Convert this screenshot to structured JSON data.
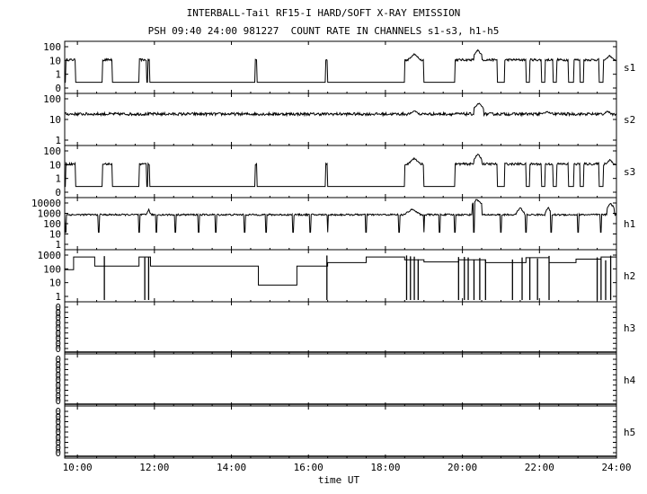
{
  "header": {
    "title": "INTERBALL-Tail RF15-I HARD/SOFT X-RAY EMISSION",
    "subtitle": "PSH 09:40 24:00 981227  COUNT RATE IN CHANNELS s1-s3, h1-h5"
  },
  "chart_data": {
    "type": "line",
    "xlabel": "time UT",
    "x_unit": "hours UT",
    "xlim": [
      9.67,
      24.0
    ],
    "x_ticks": [
      10,
      12,
      14,
      16,
      18,
      20,
      22,
      24
    ],
    "x_tick_labels": [
      "10:00",
      "12:00",
      "14:00",
      "16:00",
      "18:00",
      "20:00",
      "22:00",
      "24:00"
    ],
    "panels": [
      {
        "name": "s1",
        "scale": "log",
        "y_tick_labels": [
          "100",
          "10",
          "1",
          "0"
        ],
        "baseline": 2.2,
        "baseline_noise": 0.08,
        "gaps": [
          [
            9.7,
            9.95
          ],
          [
            10.65,
            10.9
          ],
          [
            11.6,
            11.8
          ],
          [
            11.82,
            11.88
          ],
          [
            14.62,
            14.66
          ],
          [
            16.45,
            16.5
          ],
          [
            18.5,
            19.0
          ],
          [
            19.8,
            20.9
          ],
          [
            21.1,
            21.65
          ],
          [
            21.75,
            22.05
          ],
          [
            22.15,
            22.35
          ],
          [
            22.45,
            22.75
          ],
          [
            22.9,
            23.05
          ],
          [
            23.15,
            23.55
          ],
          [
            23.65,
            24.0
          ]
        ],
        "gap_level": 1.2,
        "peaks": [
          [
            18.6,
            18.9,
            2.6
          ],
          [
            20.3,
            20.5,
            2.9
          ],
          [
            23.7,
            23.95,
            2.5
          ]
        ]
      },
      {
        "name": "s2",
        "scale": "log",
        "y_tick_labels": [
          "100",
          "10",
          "1"
        ],
        "baseline": 2.05,
        "baseline_noise": 0.1,
        "gaps": [],
        "gap_level": 2.05,
        "peaks": [
          [
            18.6,
            18.9,
            2.3
          ],
          [
            20.3,
            20.55,
            2.8
          ],
          [
            21.9,
            22.5,
            2.2
          ],
          [
            23.6,
            23.95,
            2.25
          ]
        ]
      },
      {
        "name": "s3",
        "scale": "log",
        "y_tick_labels": [
          "100",
          "10",
          "1",
          "0"
        ],
        "baseline": 2.2,
        "baseline_noise": 0.08,
        "gaps": [
          [
            9.7,
            9.95
          ],
          [
            10.65,
            10.9
          ],
          [
            11.6,
            11.8
          ],
          [
            11.82,
            11.88
          ],
          [
            14.62,
            14.66
          ],
          [
            16.45,
            16.5
          ],
          [
            18.5,
            19.0
          ],
          [
            19.8,
            20.9
          ],
          [
            21.1,
            21.65
          ],
          [
            21.75,
            22.05
          ],
          [
            22.15,
            22.35
          ],
          [
            22.45,
            22.75
          ],
          [
            22.9,
            23.05
          ],
          [
            23.15,
            23.55
          ],
          [
            23.65,
            24.0
          ]
        ],
        "gap_level": 1.2,
        "peaks": [
          [
            18.6,
            18.9,
            2.6
          ],
          [
            20.3,
            20.5,
            2.9
          ],
          [
            23.7,
            23.95,
            2.5
          ]
        ]
      },
      {
        "name": "h1",
        "scale": "log",
        "y_tick_labels": [
          "10000",
          "1000",
          "100",
          "10",
          "1"
        ],
        "baseline": 2.3,
        "baseline_noise": 0.06,
        "dips": [
          9.7,
          10.55,
          11.6,
          12.05,
          12.55,
          13.15,
          13.6,
          14.35,
          14.9,
          15.6,
          16.05,
          16.5,
          17.5,
          18.35,
          19.0,
          19.4,
          19.8,
          20.3,
          21.0,
          21.65,
          22.3,
          23.0,
          23.6
        ],
        "dip_level": 1.05,
        "peaks": [
          [
            11.8,
            11.9,
            2.7
          ],
          [
            18.5,
            18.9,
            2.7
          ],
          [
            20.25,
            20.5,
            3.4
          ],
          [
            21.4,
            21.6,
            2.8
          ],
          [
            22.15,
            22.3,
            2.8
          ],
          [
            23.75,
            23.95,
            3.1
          ]
        ]
      },
      {
        "name": "h2",
        "scale": "log",
        "y_tick_labels": [
          "1000",
          "100",
          "10",
          "1"
        ],
        "steps": [
          [
            9.67,
            9.9,
            2.1
          ],
          [
            9.9,
            10.45,
            3.0
          ],
          [
            10.45,
            10.68,
            2.35
          ],
          [
            10.68,
            11.6,
            2.35
          ],
          [
            11.6,
            11.9,
            3.0
          ],
          [
            11.9,
            14.7,
            2.35
          ],
          [
            14.7,
            15.7,
            1.0
          ],
          [
            15.7,
            16.5,
            2.35
          ],
          [
            16.5,
            17.5,
            2.6
          ],
          [
            17.5,
            18.5,
            3.0
          ],
          [
            18.5,
            19.0,
            2.8
          ],
          [
            19.0,
            19.9,
            2.65
          ],
          [
            19.9,
            20.6,
            2.8
          ],
          [
            20.6,
            21.65,
            2.6
          ],
          [
            21.65,
            22.25,
            2.95
          ],
          [
            22.25,
            22.95,
            2.6
          ],
          [
            22.95,
            23.6,
            2.85
          ],
          [
            23.6,
            24.0,
            3.0
          ]
        ],
        "spikes": [
          10.7,
          11.75,
          11.85,
          16.48,
          18.55,
          18.65,
          18.75,
          18.85,
          19.9,
          20.05,
          20.15,
          20.3,
          20.45,
          20.6,
          21.3,
          21.55,
          21.75,
          21.95,
          22.25,
          23.5,
          23.6,
          23.72,
          23.85
        ]
      },
      {
        "name": "h3",
        "scale": "log",
        "y_tick_labels": [
          "0",
          "0",
          "0",
          "0",
          "0",
          "0",
          "0",
          "0",
          "0"
        ],
        "empty": true
      },
      {
        "name": "h4",
        "scale": "log",
        "y_tick_labels": [
          "0",
          "0",
          "0",
          "0",
          "0",
          "0",
          "0",
          "0",
          "0"
        ],
        "empty": true
      },
      {
        "name": "h5",
        "scale": "log",
        "y_tick_labels": [
          "0",
          "0",
          "0",
          "0",
          "0",
          "0",
          "0",
          "0",
          "0"
        ],
        "empty": true
      }
    ]
  },
  "colors": {
    "line": "#000000",
    "background": "#ffffff"
  }
}
